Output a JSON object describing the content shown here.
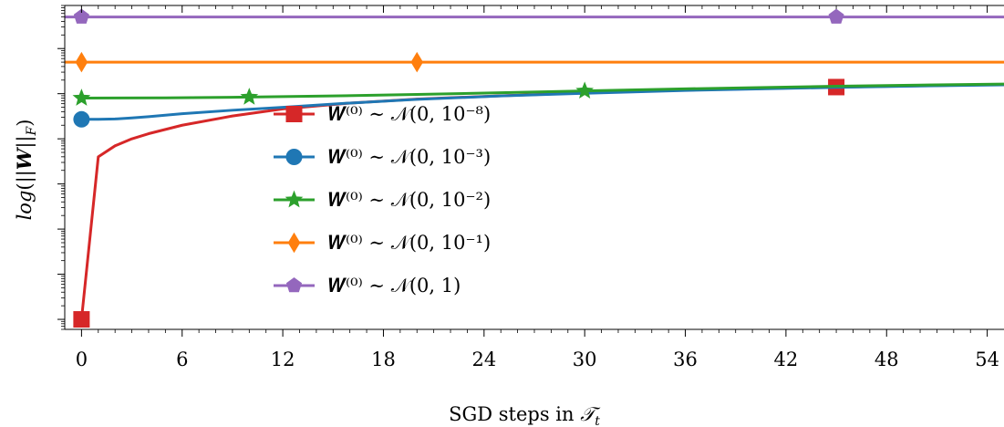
{
  "chart_data": {
    "type": "line",
    "xlabel": "SGD steps in 𝒯_t",
    "ylabel": "log(||W||_F)",
    "y_scale": "log",
    "xlim": [
      -1,
      55
    ],
    "x_ticks": [
      0,
      6,
      12,
      18,
      24,
      30,
      36,
      42,
      48,
      54
    ],
    "grid": false,
    "legend_placement": "center",
    "series": [
      {
        "name": "W^(0) ~ N(0, 10^-8)",
        "legend_text": "𝑾⁽⁰⁾ ∼ 𝒩(0, 10⁻⁸)",
        "color": "#d62728",
        "marker": "square",
        "x": [
          0,
          1,
          2,
          3,
          4,
          6,
          9,
          12,
          16,
          20,
          25,
          30,
          36,
          45,
          50,
          55
        ],
        "values": [
          1e-08,
          4e-05,
          7e-05,
          0.0001,
          0.00013,
          0.0002,
          0.00032,
          0.00046,
          0.00062,
          0.00076,
          0.0009,
          0.00105,
          0.0012,
          0.0014,
          0.0015,
          0.0016
        ],
        "marker_x": [
          0,
          45
        ]
      },
      {
        "name": "W^(0) ~ N(0, 10^-3)",
        "legend_text": "𝑾⁽⁰⁾ ∼ 𝒩(0, 10⁻³)",
        "color": "#1f77b4",
        "marker": "circle",
        "x": [
          0,
          1,
          2,
          3,
          4,
          6,
          9,
          12,
          16,
          20,
          25,
          30,
          36,
          45,
          50,
          55
        ],
        "values": [
          0.00027,
          0.00027,
          0.000275,
          0.00029,
          0.00031,
          0.00036,
          0.00043,
          0.0005,
          0.00062,
          0.00075,
          0.00089,
          0.00102,
          0.00118,
          0.00138,
          0.00148,
          0.00157
        ],
        "marker_x": [
          0
        ]
      },
      {
        "name": "W^(0) ~ N(0, 10^-2)",
        "legend_text": "𝑾⁽⁰⁾ ∼ 𝒩(0, 10⁻²)",
        "color": "#2ca02c",
        "marker": "star",
        "x": [
          0,
          5,
          10,
          15,
          20,
          25,
          30,
          35,
          40,
          45,
          50,
          55
        ],
        "values": [
          0.0008,
          0.00081,
          0.00084,
          0.00089,
          0.00096,
          0.00105,
          0.00115,
          0.00126,
          0.00136,
          0.00146,
          0.00155,
          0.00163
        ],
        "marker_x": [
          0,
          10,
          30
        ]
      },
      {
        "name": "W^(0) ~ N(0, 10^-1)",
        "legend_text": "𝑾⁽⁰⁾ ∼ 𝒩(0, 10⁻¹)",
        "color": "#ff7f0e",
        "marker": "diamond",
        "x": [
          -1,
          55
        ],
        "values": [
          0.005,
          0.005
        ],
        "marker_x": [
          0,
          20
        ]
      },
      {
        "name": "W^(0) ~ N(0, 1)",
        "legend_text": "𝑾⁽⁰⁾ ∼ 𝒩(0, 1)",
        "color": "#9467bd",
        "marker": "pentagon",
        "x": [
          -1,
          55
        ],
        "values": [
          0.05,
          0.05
        ],
        "marker_x": [
          0,
          45
        ]
      }
    ]
  }
}
